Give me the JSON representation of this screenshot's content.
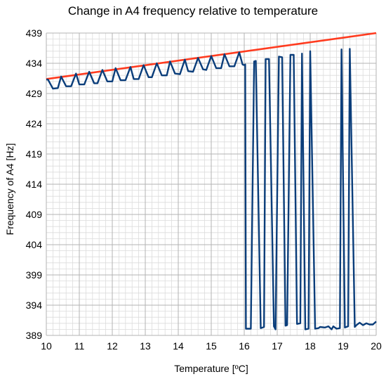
{
  "chart_data": {
    "type": "line",
    "title": "Change in A4 frequency relative to temperature",
    "xlabel": "Temperature [ºC]",
    "ylabel": "Frequency of A4 [Hz]",
    "xlim": [
      10,
      20
    ],
    "ylim": [
      389,
      439
    ],
    "x_ticks": [
      "10",
      "11",
      "12",
      "13",
      "14",
      "15",
      "16",
      "17",
      "18",
      "19",
      "20"
    ],
    "y_ticks": [
      "389",
      "394",
      "399",
      "404",
      "409",
      "414",
      "419",
      "424",
      "429",
      "434",
      "439"
    ],
    "grid": {
      "major": true,
      "minor": true
    },
    "legend": "none",
    "colors": {
      "reference": "#ff3b1f",
      "measured": "#0a3d7a",
      "grid": "#b3b3b3"
    },
    "series": [
      {
        "x": [
          10,
          20
        ],
        "y": [
          431.4,
          439
        ]
      },
      {
        "x": [
          10.0,
          10.05,
          10.2,
          10.35,
          10.45,
          10.6,
          10.75,
          10.9,
          11.0,
          11.15,
          11.3,
          11.45,
          11.55,
          11.7,
          11.85,
          12.0,
          12.1,
          12.25,
          12.4,
          12.55,
          12.65,
          12.8,
          12.95,
          13.1,
          13.2,
          13.35,
          13.5,
          13.65,
          13.75,
          13.9,
          14.05,
          14.2,
          14.3,
          14.45,
          14.6,
          14.75,
          14.85,
          15.0,
          15.15,
          15.3,
          15.4,
          15.55,
          15.7,
          15.85,
          15.95,
          16.0,
          16.03,
          16.05,
          16.2,
          16.3,
          16.35,
          16.5,
          16.6,
          16.65,
          16.75,
          16.9,
          16.95,
          17.05,
          17.15,
          17.25,
          17.3,
          17.4,
          17.5,
          17.6,
          17.7,
          17.75,
          17.85,
          17.95,
          18.0,
          18.15,
          18.25,
          18.3,
          18.45,
          18.55,
          18.65,
          18.7,
          18.8,
          18.9,
          18.95,
          19.05,
          19.15,
          19.2,
          19.35,
          19.4,
          19.5,
          19.6,
          19.7,
          19.8,
          19.9,
          20.0
        ],
        "y": [
          431.3,
          431.3,
          429.8,
          429.9,
          431.8,
          430.2,
          430.2,
          432.3,
          430.5,
          430.5,
          432.6,
          430.7,
          430.7,
          432.9,
          431.0,
          431.0,
          433.2,
          431.2,
          431.2,
          433.4,
          431.4,
          431.4,
          433.7,
          431.7,
          431.7,
          434.0,
          432.0,
          432.0,
          434.3,
          432.3,
          432.2,
          434.6,
          432.7,
          432.6,
          434.9,
          433.0,
          432.9,
          435.2,
          433.2,
          433.2,
          435.5,
          433.5,
          433.5,
          435.8,
          433.8,
          433.7,
          433.8,
          390.1,
          390.1,
          434.3,
          434.4,
          390.2,
          390.4,
          434.7,
          434.7,
          390.5,
          390.0,
          435.1,
          435.0,
          390.6,
          390.7,
          435.4,
          435.4,
          390.9,
          391.0,
          435.6,
          390.0,
          390.1,
          436.0,
          390.1,
          390.2,
          390.4,
          390.3,
          390.5,
          390.0,
          390.5,
          390.1,
          390.2,
          436.3,
          390.3,
          390.5,
          436.4,
          390.4,
          390.7,
          391.1,
          390.7,
          391.0,
          390.8,
          390.8,
          391.3
        ]
      }
    ]
  }
}
